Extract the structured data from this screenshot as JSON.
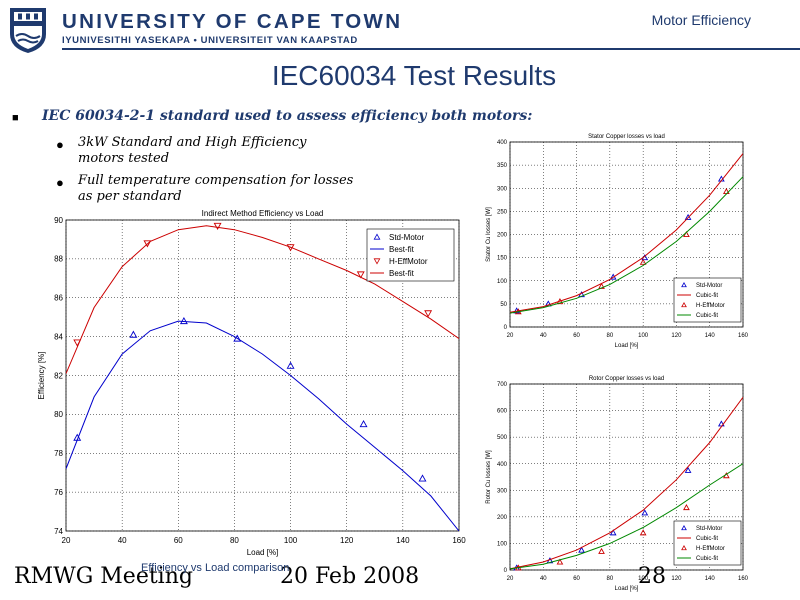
{
  "header": {
    "university": "UNIVERSITY OF CAPE TOWN",
    "subtitle": "IYUNIVESITHI YASEKAPA • UNIVERSITEIT VAN KAAPSTAD",
    "topic": "Motor Efficiency"
  },
  "slide": {
    "title": "IEC60034 Test Results",
    "main_bullet": "IEC 60034-2-1 standard used to assess efficiency both motors:",
    "sub_bullets": [
      {
        "line1": "3kW Standard and High Efficiency",
        "line2": "motors tested"
      },
      {
        "line1": "Full temperature compensation for losses",
        "line2": "as per standard"
      }
    ]
  },
  "footer": {
    "left": "RMWG Meeting",
    "center": "20 Feb 2008",
    "page": "28",
    "caption": "Efficiency vs Load comparison"
  },
  "colors": {
    "navy": "#1f3a6e",
    "blue_series": "#0000cc",
    "red_series": "#cc0000",
    "green_series": "#008800"
  },
  "icons": {
    "logo": "uct-crest-icon",
    "bullet": "bullet-icon"
  },
  "chart_data": [
    {
      "type": "scatter",
      "title": "Indirect Method Efficiency vs Load",
      "xlabel": "Load [%]",
      "ylabel": "Efficiency [%]",
      "xlim": [
        20,
        160
      ],
      "ylim": [
        74,
        90
      ],
      "xticks": [
        20,
        40,
        60,
        80,
        100,
        120,
        140,
        160
      ],
      "yticks": [
        74,
        76,
        78,
        80,
        82,
        84,
        86,
        88,
        90
      ],
      "grid": true,
      "legend_position": "top-right",
      "series": [
        {
          "name": "Std-Motor",
          "kind": "markers",
          "marker": "triangle-up",
          "color": "#0000cc",
          "x": [
            24,
            44,
            62,
            81,
            100,
            126,
            147
          ],
          "y": [
            78.8,
            84.1,
            84.8,
            83.9,
            82.5,
            79.5,
            76.7
          ]
        },
        {
          "name": "Best-fit",
          "kind": "line",
          "color": "#0000cc",
          "x": [
            20,
            30,
            40,
            50,
            60,
            70,
            80,
            90,
            100,
            110,
            120,
            130,
            140,
            150,
            160
          ],
          "y": [
            77.2,
            80.9,
            83.1,
            84.3,
            84.8,
            84.7,
            84.0,
            83.1,
            82.0,
            80.8,
            79.5,
            78.3,
            77.1,
            75.8,
            74.0
          ]
        },
        {
          "name": "H-EffMotor",
          "kind": "markers",
          "marker": "triangle-down",
          "color": "#cc0000",
          "x": [
            24,
            49,
            74,
            100,
            125,
            149
          ],
          "y": [
            83.7,
            88.8,
            89.7,
            88.6,
            87.2,
            85.2
          ]
        },
        {
          "name": "Best-fit",
          "kind": "line",
          "color": "#cc0000",
          "x": [
            20,
            30,
            40,
            50,
            60,
            70,
            80,
            90,
            100,
            110,
            120,
            130,
            140,
            150,
            160
          ],
          "y": [
            82.1,
            85.5,
            87.6,
            88.9,
            89.5,
            89.7,
            89.5,
            89.1,
            88.6,
            88.0,
            87.4,
            86.7,
            85.8,
            84.9,
            83.9
          ]
        }
      ]
    },
    {
      "type": "scatter",
      "title": "Stator Copper losses vs load",
      "xlabel": "Load [%]",
      "ylabel": "Stator Cu losses [W]",
      "xlim": [
        20,
        160
      ],
      "ylim": [
        0,
        400
      ],
      "xticks": [
        20,
        40,
        60,
        80,
        100,
        120,
        140,
        160
      ],
      "yticks": [
        0,
        50,
        100,
        150,
        200,
        250,
        300,
        350,
        400
      ],
      "grid": true,
      "legend_position": "bottom-right",
      "series": [
        {
          "name": "Std-Motor",
          "kind": "markers",
          "marker": "triangle-up",
          "color": "#0000cc",
          "x": [
            24,
            43,
            63,
            82,
            101,
            127,
            147
          ],
          "y": [
            35,
            50,
            70,
            108,
            150,
            237,
            320
          ]
        },
        {
          "name": "Cubic-fit",
          "kind": "line",
          "color": "#cc0000",
          "x": [
            20,
            40,
            60,
            80,
            100,
            120,
            140,
            160
          ],
          "y": [
            32,
            44,
            68,
            103,
            150,
            210,
            285,
            375
          ]
        },
        {
          "name": "H-EffMotor",
          "kind": "markers",
          "marker": "triangle-up",
          "color": "#cc0000",
          "x": [
            25,
            50,
            75,
            100,
            126,
            150
          ],
          "y": [
            33,
            55,
            88,
            140,
            200,
            293
          ]
        },
        {
          "name": "Cubic-fit",
          "kind": "line",
          "color": "#008800",
          "x": [
            20,
            40,
            60,
            80,
            100,
            120,
            140,
            160
          ],
          "y": [
            30,
            42,
            62,
            92,
            133,
            185,
            250,
            325
          ]
        }
      ]
    },
    {
      "type": "scatter",
      "title": "Rotor Copper losses vs load",
      "xlabel": "Load [%]",
      "ylabel": "Rotor Cu losses [W]",
      "xlim": [
        20,
        160
      ],
      "ylim": [
        0,
        700
      ],
      "xticks": [
        20,
        40,
        60,
        80,
        100,
        120,
        140,
        160
      ],
      "yticks": [
        0,
        100,
        200,
        300,
        400,
        500,
        600,
        700
      ],
      "grid": true,
      "legend_position": "bottom-right",
      "series": [
        {
          "name": "Std-Motor",
          "kind": "markers",
          "marker": "triangle-up",
          "color": "#0000cc",
          "x": [
            24,
            44,
            63,
            82,
            101,
            127,
            147
          ],
          "y": [
            8,
            35,
            75,
            140,
            215,
            375,
            550
          ]
        },
        {
          "name": "Cubic-fit",
          "kind": "line",
          "color": "#cc0000",
          "x": [
            20,
            40,
            60,
            80,
            100,
            120,
            140,
            160
          ],
          "y": [
            5,
            30,
            75,
            140,
            225,
            340,
            480,
            650
          ]
        },
        {
          "name": "H-EffMotor",
          "kind": "markers",
          "marker": "triangle-up",
          "color": "#cc0000",
          "x": [
            25,
            50,
            75,
            100,
            126,
            150
          ],
          "y": [
            8,
            30,
            70,
            140,
            235,
            355
          ]
        },
        {
          "name": "Cubic-fit",
          "kind": "line",
          "color": "#008800",
          "x": [
            20,
            40,
            60,
            80,
            100,
            120,
            140,
            160
          ],
          "y": [
            4,
            22,
            55,
            100,
            160,
            235,
            320,
            400
          ]
        }
      ]
    }
  ]
}
